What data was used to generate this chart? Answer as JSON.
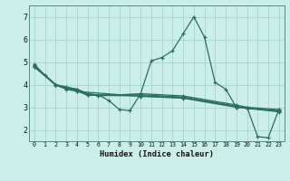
{
  "xlabel": "Humidex (Indice chaleur)",
  "bg_color": "#cceee8",
  "grid_color": "#aad8d0",
  "line_color": "#2a6e62",
  "xlim": [
    -0.5,
    23.5
  ],
  "ylim": [
    1.5,
    7.5
  ],
  "yticks": [
    2,
    3,
    4,
    5,
    6,
    7
  ],
  "xticks": [
    0,
    1,
    2,
    3,
    4,
    5,
    6,
    7,
    8,
    9,
    10,
    11,
    12,
    13,
    14,
    15,
    16,
    17,
    18,
    19,
    20,
    21,
    22,
    23
  ],
  "lines": [
    {
      "x": [
        0,
        1,
        2,
        3,
        4,
        5,
        6,
        7,
        8,
        9,
        10,
        11,
        12,
        13,
        14,
        15,
        16,
        17,
        18,
        19,
        20,
        21,
        22,
        23
      ],
      "y": [
        4.9,
        4.4,
        4.0,
        3.9,
        3.8,
        3.6,
        3.55,
        3.3,
        2.9,
        2.85,
        3.6,
        5.05,
        5.2,
        5.5,
        6.25,
        7.0,
        6.1,
        4.1,
        3.8,
        3.0,
        3.0,
        1.7,
        1.65,
        2.9
      ]
    },
    {
      "x": [
        0,
        2,
        3,
        4,
        5,
        6,
        10,
        14,
        19,
        20,
        23
      ],
      "y": [
        4.85,
        4.0,
        3.85,
        3.8,
        3.6,
        3.5,
        3.6,
        3.5,
        3.1,
        3.0,
        2.9
      ]
    },
    {
      "x": [
        0,
        2,
        3,
        4,
        5,
        10,
        14,
        19,
        20,
        23
      ],
      "y": [
        4.82,
        4.0,
        3.85,
        3.75,
        3.55,
        3.55,
        3.45,
        3.05,
        2.95,
        2.85
      ]
    },
    {
      "x": [
        0,
        2,
        3,
        4,
        5,
        10,
        14,
        19,
        23
      ],
      "y": [
        4.8,
        4.0,
        3.83,
        3.72,
        3.53,
        3.5,
        3.42,
        3.02,
        2.82
      ]
    },
    {
      "x": [
        0,
        2,
        3,
        4,
        10,
        14,
        19,
        23
      ],
      "y": [
        4.78,
        3.98,
        3.8,
        3.7,
        3.48,
        3.4,
        3.0,
        2.8
      ]
    }
  ]
}
